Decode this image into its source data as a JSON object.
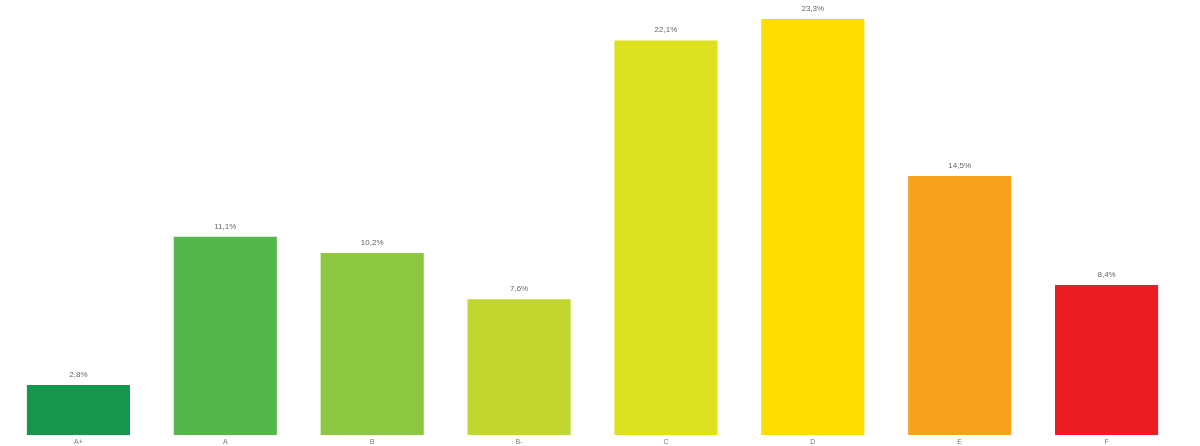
{
  "chart_data": {
    "type": "bar",
    "categories": [
      "A+",
      "A",
      "B",
      "B-",
      "C",
      "D",
      "E",
      "F"
    ],
    "values": [
      2.8,
      11.1,
      10.2,
      7.6,
      22.1,
      23.3,
      14.5,
      8.4
    ],
    "value_labels": [
      "2,8%",
      "11,1%",
      "10,2%",
      "7,6%",
      "22,1%",
      "23,3%",
      "14,5%",
      "8,4%"
    ],
    "colors": [
      "#14964c",
      "#52b84a",
      "#8dc63f",
      "#c1d72f",
      "#dee11f",
      "#ffdd00",
      "#f7a11c",
      "#ed1c24"
    ],
    "grid": false,
    "legend": false
  }
}
